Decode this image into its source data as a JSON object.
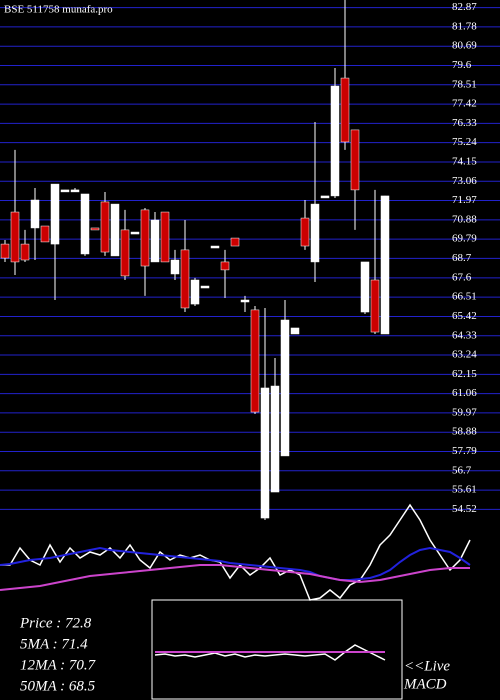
{
  "chart_data": [
    {
      "type": "candlestick",
      "title": "BSE 511758 munafa.pro",
      "open": [
        69.51,
        71.32,
        69.51,
        70.42,
        70.53,
        69.51,
        72.5,
        72.57,
        68.95,
        70.42,
        71.89,
        68.84,
        70.31,
        70.19,
        71.44,
        68.5,
        71.32,
        67.82,
        69.18,
        66.12,
        67.14,
        69.4,
        68.5,
        69.85,
        66.35,
        65.79,
        54.03,
        55.5,
        57.54,
        64.43,
        70.98,
        68.5,
        72.23,
        72.23,
        78.89,
        75.96,
        65.67,
        67.48,
        64.43
      ],
      "high": [
        69.74,
        74.83,
        70.31,
        72.68,
        70.53,
        72.9,
        72.57,
        72.68,
        72.34,
        70.42,
        72.45,
        71.77,
        71.44,
        70.19,
        71.55,
        71.32,
        71.32,
        69.18,
        70.87,
        67.6,
        67.14,
        69.4,
        69.18,
        69.85,
        66.58,
        66.01,
        65.9,
        63.07,
        66.35,
        64.77,
        72.0,
        76.41,
        72.23,
        79.46,
        83.3,
        75.96,
        68.5,
        72.57,
        72.23
      ],
      "low": [
        68.5,
        67.76,
        68.5,
        68.61,
        69.63,
        66.35,
        72.5,
        72.45,
        68.84,
        70.31,
        68.84,
        68.84,
        67.48,
        70.19,
        66.58,
        68.5,
        68.5,
        67.48,
        65.67,
        66.01,
        67.14,
        69.4,
        66.46,
        69.4,
        65.67,
        59.91,
        53.92,
        55.5,
        57.54,
        64.43,
        69.18,
        67.37,
        72.23,
        72.11,
        74.83,
        70.31,
        65.56,
        64.43,
        64.43
      ],
      "close": [
        68.72,
        68.5,
        68.61,
        72.0,
        69.63,
        72.9,
        72.57,
        72.57,
        72.34,
        70.31,
        69.06,
        71.77,
        67.71,
        70.19,
        68.27,
        70.87,
        68.5,
        68.61,
        65.9,
        67.48,
        67.14,
        69.4,
        68.05,
        69.4,
        66.35,
        60.02,
        61.38,
        61.49,
        65.22,
        64.77,
        69.4,
        71.77,
        72.23,
        78.44,
        75.28,
        72.57,
        68.5,
        64.54,
        72.23
      ],
      "up_color": "#ffffff",
      "down_color": "#cc0000",
      "grid_color": "#2222cc",
      "ylim": [
        53.92,
        83.3
      ],
      "yticks": [
        82.87,
        81.78,
        80.69,
        79.6,
        78.51,
        77.42,
        76.33,
        75.24,
        74.15,
        73.06,
        71.97,
        70.88,
        69.79,
        68.7,
        67.6,
        66.51,
        65.42,
        64.33,
        63.24,
        62.15,
        61.06,
        59.97,
        58.88,
        57.79,
        56.7,
        55.61,
        54.52
      ]
    },
    {
      "type": "line",
      "ylim": [
        0,
        100
      ],
      "series": [
        {
          "color": "#ffffff",
          "values": [
            35,
            35,
            52,
            40,
            35,
            55,
            38,
            52,
            42,
            48,
            45,
            52,
            42,
            55,
            40,
            32,
            48,
            40,
            45,
            42,
            45,
            40,
            38,
            22,
            35,
            25,
            32,
            42,
            25,
            30,
            25,
            0,
            2,
            10,
            2,
            15,
            20,
            35,
            55,
            65,
            80,
            95,
            80,
            60,
            45,
            30,
            40,
            60
          ]
        },
        {
          "color": "#2222dd",
          "values": [
            35,
            36,
            38,
            40,
            41,
            42,
            44,
            46,
            48,
            50,
            52,
            50,
            49,
            48,
            47,
            46,
            45,
            44,
            43,
            42,
            41,
            40,
            39,
            37,
            36,
            35,
            34,
            33,
            32,
            31,
            30,
            28,
            24,
            22,
            20,
            20,
            21,
            22,
            25,
            30,
            38,
            45,
            50,
            52,
            50,
            48,
            42,
            35
          ]
        },
        {
          "color": "#cc44cc",
          "values": [
            10,
            11,
            12,
            13,
            14,
            16,
            18,
            20,
            22,
            24,
            25,
            26,
            27,
            28,
            29,
            30,
            31,
            32,
            33,
            34,
            35,
            35,
            35,
            34,
            33,
            32,
            31,
            30,
            29,
            28,
            27,
            26,
            24,
            22,
            20,
            19,
            18,
            19,
            20,
            22,
            24,
            26,
            28,
            30,
            31,
            32,
            32,
            32
          ]
        }
      ]
    },
    {
      "type": "line",
      "ylim": [
        0,
        100
      ],
      "label": "<<Live",
      "label2": "MACD",
      "series": [
        {
          "color": "#ffffff",
          "values": [
            45,
            46,
            44,
            45,
            43,
            45,
            47,
            44,
            46,
            43,
            45,
            44,
            45,
            46,
            45,
            44,
            45,
            46,
            40,
            48,
            55,
            50,
            45,
            40
          ]
        },
        {
          "color": "#cc44cc",
          "values": [
            48,
            48,
            48,
            48,
            48,
            48,
            48,
            48,
            48,
            48,
            48,
            48,
            48,
            48,
            48,
            48,
            48,
            48,
            48,
            48,
            48,
            48,
            48,
            48
          ]
        }
      ]
    }
  ],
  "stats": [
    "Price   : 72.8",
    "5MA   : 71.4",
    "12MA : 70.7",
    "50MA : 68.5"
  ]
}
